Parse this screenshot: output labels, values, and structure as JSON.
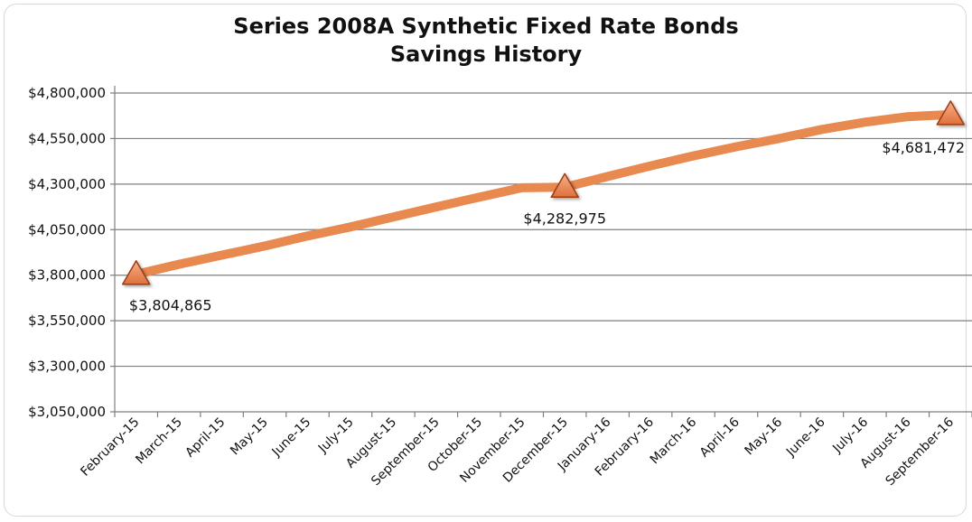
{
  "chart_data": {
    "type": "line",
    "title": "Series 2008A Synthetic Fixed Rate Bonds",
    "subtitle": "Savings History",
    "xlabel": "",
    "ylabel": "",
    "categories": [
      "February-15",
      "March-15",
      "April-15",
      "May-15",
      "June-15",
      "July-15",
      "August-15",
      "September-15",
      "October-15",
      "November-15",
      "December-15",
      "January-16",
      "February-16",
      "March-16",
      "April-16",
      "May-16",
      "June-16",
      "July-16",
      "August-16",
      "September-16"
    ],
    "series": [
      {
        "values": [
          3804865,
          3860000,
          3910000,
          3960000,
          4015000,
          4065000,
          4120000,
          4175000,
          4228000,
          4280000,
          4282975,
          4342000,
          4400000,
          4455000,
          4505000,
          4550000,
          4600000,
          4640000,
          4670000,
          4681472
        ],
        "color": "#e8894f"
      }
    ],
    "markers": [
      {
        "index": 0,
        "label": "$3,804,865"
      },
      {
        "index": 10,
        "label": "$4,282,975"
      },
      {
        "index": 19,
        "label": "$4,681,472"
      }
    ],
    "ylim": [
      3050000,
      4800000
    ],
    "yticks": [
      3050000,
      3300000,
      3550000,
      3800000,
      4050000,
      4300000,
      4550000,
      4800000
    ],
    "ytick_labels": [
      "$3,050,000",
      "$3,300,000",
      "$3,550,000",
      "$3,800,000",
      "$4,050,000",
      "$4,300,000",
      "$4,550,000",
      "$4,800,000"
    ],
    "grid": true,
    "legend": "none",
    "colors": {
      "line": "#e8894f",
      "marker_fill": "#e0703a",
      "marker_stroke": "#9b3d16",
      "grid": "#7f7f7f"
    }
  }
}
